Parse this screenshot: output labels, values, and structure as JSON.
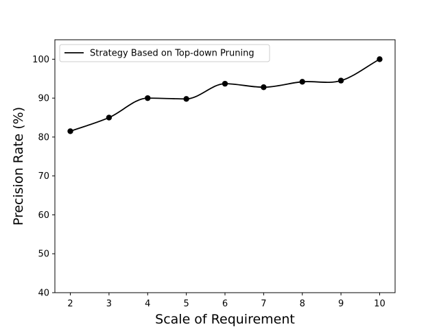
{
  "chart_data": {
    "type": "line",
    "title": "",
    "xlabel": "Scale of Requirement",
    "ylabel": "Precision Rate (%)",
    "x": [
      2,
      3,
      4,
      5,
      6,
      7,
      8,
      9,
      10
    ],
    "xticks": [
      2,
      3,
      4,
      5,
      6,
      7,
      8,
      9,
      10
    ],
    "yticks": [
      40,
      50,
      60,
      70,
      80,
      90,
      100
    ],
    "xlim": [
      1.6,
      10.4
    ],
    "ylim": [
      40,
      105
    ],
    "grid": false,
    "legend_position": "top-left",
    "series": [
      {
        "name": "Strategy Based on Top-down Pruning",
        "color": "#000000",
        "marker": "circle",
        "curve": "smooth",
        "values": [
          81.5,
          85.0,
          90.0,
          89.8,
          93.7,
          92.8,
          94.2,
          94.5,
          100.0
        ]
      }
    ]
  }
}
